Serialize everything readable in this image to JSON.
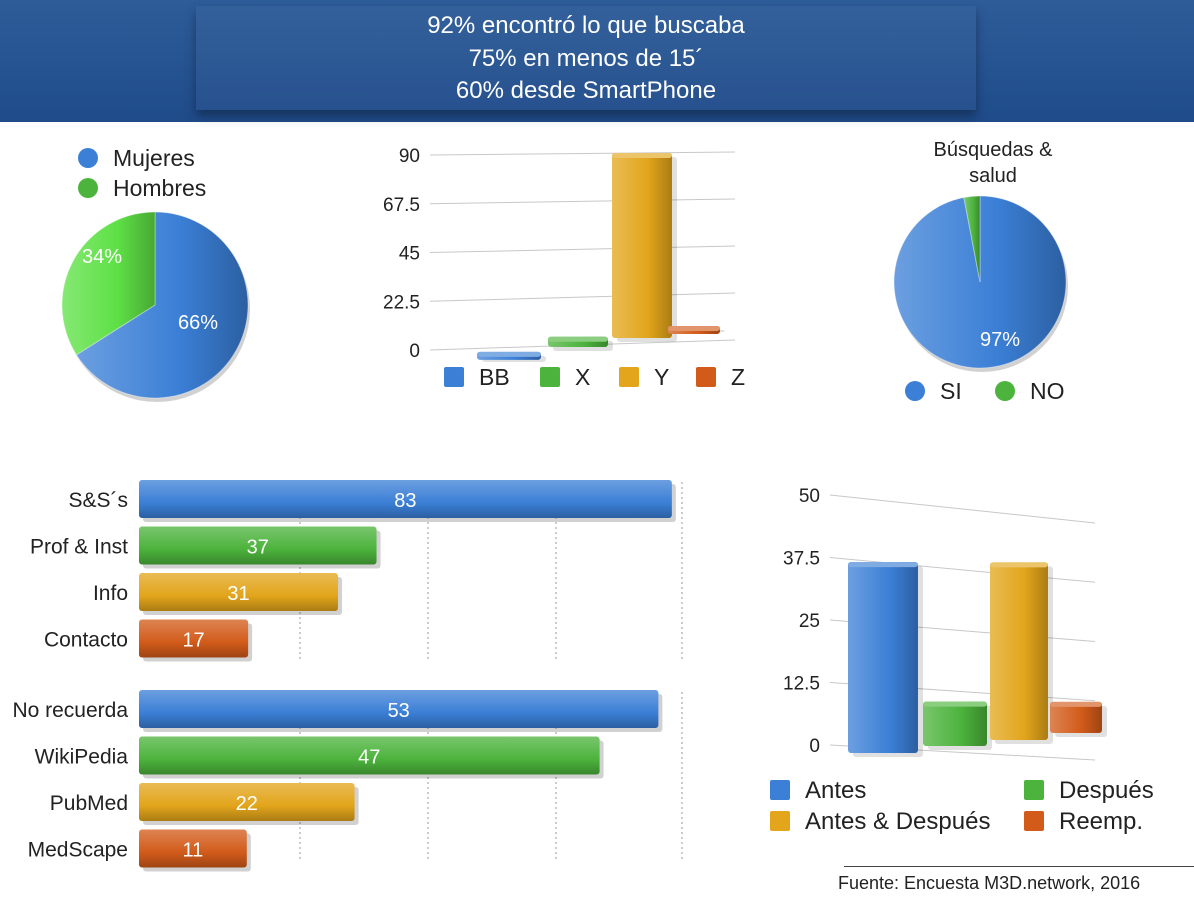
{
  "header": {
    "lines": [
      "92% encontró lo que buscaba",
      "75% en menos de 15´",
      "60% desde SmartPhone"
    ]
  },
  "colors": {
    "blue": "#3b7fd6",
    "green": "#4cb33c",
    "light_green": "#5ee045",
    "yellow": "#e2a51b",
    "orange": "#d25b1a",
    "header_bg": "#245191"
  },
  "chart_data": [
    {
      "id": "gender-pie",
      "type": "pie",
      "labels": [
        "Mujeres",
        "Hombres"
      ],
      "values": [
        66,
        34
      ],
      "data_labels": [
        "66%",
        "34%"
      ],
      "colors": [
        "#3b7fd6",
        "#5ee045"
      ],
      "legend": "top-left"
    },
    {
      "id": "device-bars",
      "type": "bar",
      "categories": [
        "BB",
        "X",
        "Y",
        "Z"
      ],
      "values": [
        3,
        5,
        90,
        1
      ],
      "yticks": [
        "0",
        "22.5",
        "45",
        "67.5",
        "90"
      ],
      "ylim": [
        0,
        90
      ],
      "colors": [
        "#3b7fd6",
        "#4cb33c",
        "#e2a51b",
        "#d25b1a"
      ],
      "legend": "bottom"
    },
    {
      "id": "health-pie",
      "type": "pie",
      "title": "Búsquedas &\nsalud",
      "labels": [
        "SI",
        "NO"
      ],
      "values": [
        97,
        3
      ],
      "data_labels": [
        "97%"
      ],
      "colors": [
        "#3b7fd6",
        "#4cb33c"
      ],
      "legend": "bottom"
    },
    {
      "id": "sources-hbar",
      "type": "bar",
      "orientation": "horizontal",
      "categories": [
        "S&S´s",
        "Prof & Inst",
        "Info",
        "Contacto"
      ],
      "values": [
        83,
        37,
        31,
        17
      ],
      "data_labels": [
        "83",
        "37",
        "31",
        "17"
      ],
      "colors": [
        "#3b7fd6",
        "#4cb33c",
        "#e2a51b",
        "#d25b1a"
      ]
    },
    {
      "id": "sites-hbar",
      "type": "bar",
      "orientation": "horizontal",
      "categories": [
        "No recuerda",
        "WikiPedia",
        "PubMed",
        "MedScape"
      ],
      "values": [
        53,
        47,
        22,
        11
      ],
      "data_labels": [
        "53",
        "47",
        "22",
        "11"
      ],
      "colors": [
        "#3b7fd6",
        "#4cb33c",
        "#e2a51b",
        "#d25b1a"
      ]
    },
    {
      "id": "timing-bars",
      "type": "bar",
      "categories": [
        "Antes",
        "Después",
        "Antes & Después",
        "Reemp."
      ],
      "values": [
        43,
        10,
        40,
        7
      ],
      "yticks": [
        "0",
        "12.5",
        "25",
        "37.5",
        "50"
      ],
      "ylim": [
        0,
        50
      ],
      "colors": [
        "#3b7fd6",
        "#4cb33c",
        "#e2a51b",
        "#d25b1a"
      ],
      "legend": "bottom"
    }
  ],
  "source": "Fuente: Encuesta M3D.network, 2016"
}
